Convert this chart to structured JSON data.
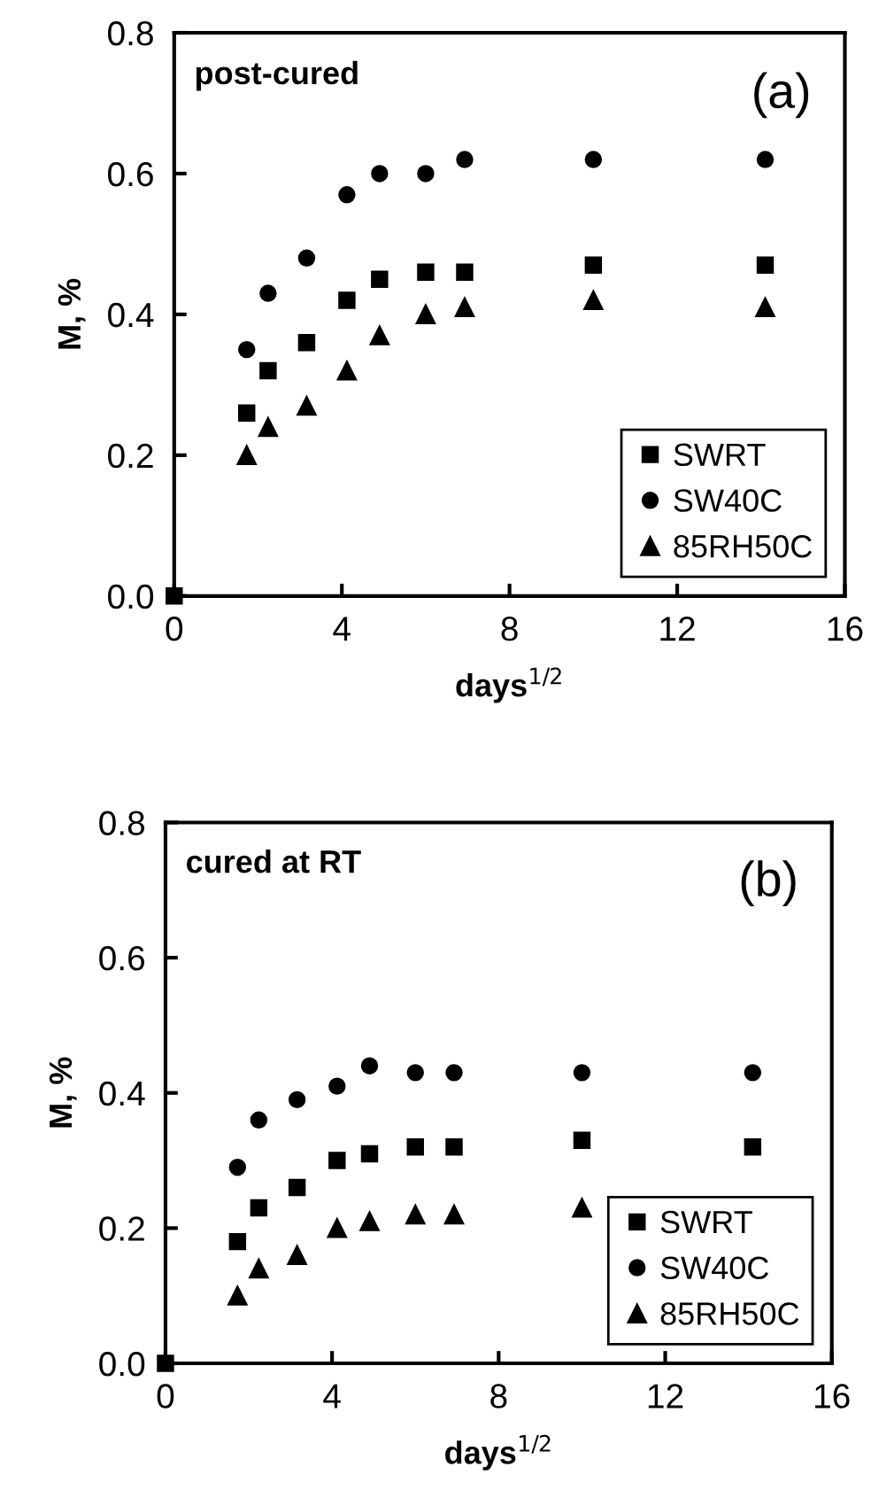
{
  "chart_data": [
    {
      "type": "scatter",
      "title": "post-cured",
      "annotations": [
        "(a)"
      ],
      "xlabel": "days$^{1/2}$",
      "ylabel": "M, %",
      "xlim": [
        0,
        16
      ],
      "xticks": [
        0,
        4,
        8,
        12,
        16
      ],
      "ylim": [
        0,
        0.8
      ],
      "yticks": [
        {
          "value": 0,
          "label": "0.0"
        },
        0.2,
        0.4,
        0.6,
        0.8
      ],
      "grid": false,
      "legend": "bottom right",
      "x": [
        0,
        1.73,
        2.24,
        3.16,
        4.12,
        4.9,
        6,
        6.93,
        10,
        14.1
      ],
      "series": [
        {
          "name": "SWRT",
          "color": "#000000",
          "marker": "square",
          "values": [
            0,
            0.26,
            0.32,
            0.36,
            0.42,
            0.45,
            0.46,
            0.46,
            0.47,
            0.47
          ]
        },
        {
          "name": "SW40C",
          "color": "#000000",
          "marker": "circle",
          "values": [
            null,
            0.35,
            0.43,
            0.48,
            0.57,
            0.6,
            0.6,
            0.62,
            0.62,
            0.62
          ]
        },
        {
          "name": "85RH50C",
          "color": "#000000",
          "marker": "triangle",
          "values": [
            null,
            0.2,
            0.24,
            0.27,
            0.32,
            0.37,
            0.4,
            0.41,
            0.42,
            0.41
          ]
        }
      ]
    },
    {
      "type": "scatter",
      "title": "cured at RT",
      "annotations": [
        "(b)"
      ],
      "xlabel": "days$^{1/2}$",
      "ylabel": "M, %",
      "xlim": [
        0,
        16
      ],
      "xticks": [
        0,
        4,
        8,
        12,
        16
      ],
      "ylim": [
        0,
        0.8
      ],
      "yticks": [
        {
          "value": 0,
          "label": "0.0"
        },
        0.2,
        0.4,
        0.6,
        0.8
      ],
      "grid": false,
      "legend": "bottom right",
      "x": [
        0,
        1.73,
        2.24,
        3.16,
        4.12,
        4.9,
        6,
        6.93,
        10,
        14.1
      ],
      "series": [
        {
          "name": "SWRT",
          "color": "#000000",
          "marker": "square",
          "values": [
            0,
            0.18,
            0.23,
            0.26,
            0.3,
            0.31,
            0.32,
            0.32,
            0.33,
            0.32
          ]
        },
        {
          "name": "SW40C",
          "color": "#000000",
          "marker": "circle",
          "values": [
            null,
            0.29,
            0.36,
            0.39,
            0.41,
            0.44,
            0.43,
            0.43,
            0.43,
            0.43
          ]
        },
        {
          "name": "85RH50C",
          "color": "#000000",
          "marker": "triangle",
          "values": [
            null,
            0.1,
            0.14,
            0.16,
            0.2,
            0.21,
            0.22,
            0.22,
            0.23,
            null
          ]
        }
      ]
    }
  ]
}
